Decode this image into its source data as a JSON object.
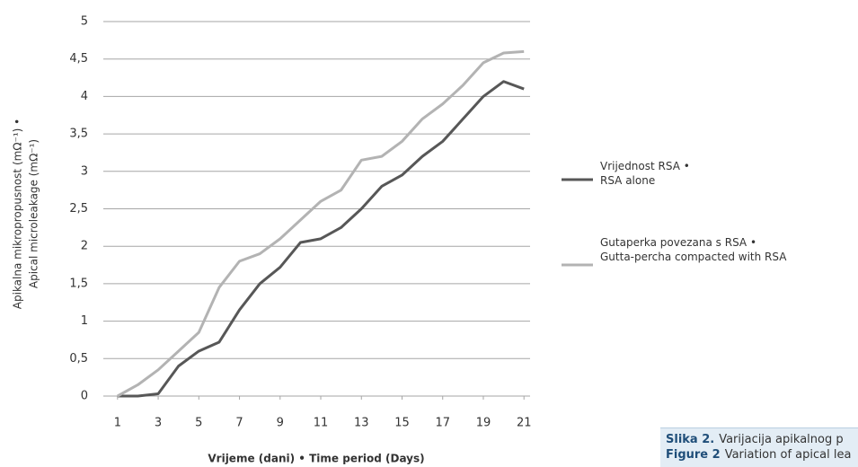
{
  "chart_data": {
    "type": "line",
    "ylabel": [
      "Apikalna mikropropusnost (mΩ⁻¹) •",
      "Apical microleakage (mΩ⁻¹)"
    ],
    "xlabel": "Vrijeme (dani) • Time period (Days)",
    "x": [
      1,
      2,
      3,
      4,
      5,
      6,
      7,
      8,
      9,
      10,
      11,
      12,
      13,
      14,
      15,
      16,
      17,
      18,
      19,
      20,
      21
    ],
    "series": [
      {
        "name": "Vrijednost RSA •\nRSA alone",
        "color": "#575757",
        "values": [
          0,
          0,
          0.03,
          0.4,
          0.6,
          0.72,
          1.15,
          1.5,
          1.72,
          2.05,
          2.1,
          2.25,
          2.5,
          2.8,
          2.95,
          3.2,
          3.4,
          3.7,
          4.0,
          4.2,
          4.1
        ]
      },
      {
        "name": "Gutaperka povezana s RSA •\nGutta-percha compacted with RSA",
        "color": "#b3b3b3",
        "values": [
          0,
          0.15,
          0.35,
          0.6,
          0.85,
          1.45,
          1.8,
          1.9,
          2.1,
          2.35,
          2.6,
          2.75,
          3.15,
          3.2,
          3.4,
          3.7,
          3.9,
          4.15,
          4.45,
          4.58,
          4.6
        ]
      }
    ],
    "xlim": [
      0.3,
      21.3
    ],
    "xticks": [
      1,
      3,
      5,
      7,
      9,
      11,
      13,
      15,
      17,
      19,
      21
    ],
    "ylim": [
      0,
      5
    ],
    "yticks": [
      0,
      {
        "value": 0.5,
        "label": "0,5"
      },
      1,
      {
        "value": 1.5,
        "label": "1,5"
      },
      2,
      {
        "value": 2.5,
        "label": "2,5"
      },
      3,
      {
        "value": 3.5,
        "label": "3,5"
      },
      4,
      {
        "value": 4.5,
        "label": "4,5"
      },
      5
    ],
    "grid": true
  },
  "caption": [
    {
      "label": "Slika 2.",
      "text": "Varijacija apikalnog p"
    },
    {
      "label": "Figure 2",
      "text": "Variation of apical lea"
    }
  ]
}
